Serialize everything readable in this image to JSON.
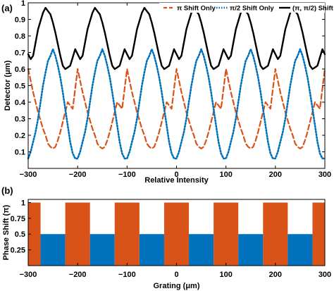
{
  "chart_data": [
    {
      "panel_label": "(a)",
      "type": "line",
      "xlabel": "Relative Intensity",
      "ylabel": "Detector (μm)",
      "xlim": [
        -300,
        300
      ],
      "ylim": [
        0,
        1
      ],
      "x_ticks": [
        -300,
        -200,
        -100,
        0,
        100,
        200,
        300
      ],
      "x_tick_labels": [
        "−300",
        "−200",
        "−100",
        "0",
        "100",
        "200",
        "300"
      ],
      "y_ticks": [
        0.1,
        0.2,
        0.3,
        0.4,
        0.5,
        0.6,
        0.7,
        0.8,
        0.9,
        1
      ],
      "y_tick_labels": [
        "0.1",
        "0.2",
        "0.3",
        "0.4",
        "0.5",
        "0.6",
        "0.7",
        "0.8",
        "0.9",
        "1"
      ],
      "grid": false,
      "legend_position": "top-right",
      "period": 100,
      "series": [
        {
          "name": "π Shift Only",
          "color": "#d95319",
          "style": "dashed",
          "period_offsets": [
            0,
            5,
            10,
            15,
            20,
            25,
            30,
            35,
            40,
            45,
            50,
            55,
            60,
            65,
            70,
            75,
            80,
            85,
            90,
            95
          ],
          "period_values": [
            0.6,
            0.53,
            0.46,
            0.4,
            0.34,
            0.29,
            0.24,
            0.2,
            0.15,
            0.13,
            0.12,
            0.13,
            0.17,
            0.22,
            0.28,
            0.34,
            0.4,
            0.38,
            0.36,
            0.48
          ]
        },
        {
          "name": "π/2 Shift Only",
          "color": "#0072bd",
          "style": "dotted",
          "period_offsets": [
            0,
            5,
            10,
            15,
            20,
            25,
            30,
            35,
            40,
            45,
            50,
            55,
            60,
            65,
            70,
            75,
            80,
            85,
            90,
            95
          ],
          "period_values": [
            0.06,
            0.1,
            0.16,
            0.22,
            0.3,
            0.4,
            0.5,
            0.58,
            0.65,
            0.68,
            0.72,
            0.68,
            0.62,
            0.55,
            0.46,
            0.36,
            0.26,
            0.16,
            0.09,
            0.06
          ]
        },
        {
          "name": "(π, π/2) Shift",
          "color": "#000000",
          "style": "solid",
          "period_offsets": [
            0,
            5,
            10,
            15,
            20,
            25,
            30,
            35,
            40,
            45,
            50,
            55,
            60,
            65,
            70,
            75,
            80,
            85,
            90,
            95
          ],
          "period_values": [
            0.69,
            0.66,
            0.68,
            0.76,
            0.84,
            0.89,
            0.94,
            0.97,
            0.95,
            0.93,
            0.88,
            0.82,
            0.75,
            0.68,
            0.62,
            0.6,
            0.61,
            0.62,
            0.67,
            0.72
          ]
        }
      ]
    },
    {
      "panel_label": "(b)",
      "type": "bar",
      "xlabel": "Grating (μm)",
      "ylabel": "Phase Shift (π)",
      "xlim": [
        -300,
        300
      ],
      "ylim": [
        0,
        1.05
      ],
      "x_ticks": [
        -300,
        -200,
        -100,
        0,
        100,
        200,
        300
      ],
      "x_tick_labels": [
        "−300",
        "−200",
        "−100",
        "0",
        "100",
        "200",
        "300"
      ],
      "y_ticks": [
        0.25,
        0.5,
        0.75,
        1
      ],
      "y_tick_labels": [
        "0.25",
        "0.5",
        "0.75",
        "1"
      ],
      "grid": false,
      "bars": [
        {
          "x0": -300,
          "x1": -275,
          "value": 1,
          "color": "#d95319"
        },
        {
          "x0": -275,
          "x1": -225,
          "value": 0.5,
          "color": "#0072bd"
        },
        {
          "x0": -225,
          "x1": -175,
          "value": 1,
          "color": "#d95319"
        },
        {
          "x0": -175,
          "x1": -125,
          "value": 0.5,
          "color": "#0072bd"
        },
        {
          "x0": -125,
          "x1": -75,
          "value": 1,
          "color": "#d95319"
        },
        {
          "x0": -75,
          "x1": -25,
          "value": 0.5,
          "color": "#0072bd"
        },
        {
          "x0": -25,
          "x1": 25,
          "value": 1,
          "color": "#d95319"
        },
        {
          "x0": 25,
          "x1": 75,
          "value": 0.5,
          "color": "#0072bd"
        },
        {
          "x0": 75,
          "x1": 125,
          "value": 1,
          "color": "#d95319"
        },
        {
          "x0": 125,
          "x1": 175,
          "value": 0.5,
          "color": "#0072bd"
        },
        {
          "x0": 175,
          "x1": 225,
          "value": 1,
          "color": "#d95319"
        },
        {
          "x0": 225,
          "x1": 275,
          "value": 0.5,
          "color": "#0072bd"
        },
        {
          "x0": 275,
          "x1": 300,
          "value": 1,
          "color": "#d95319"
        }
      ]
    }
  ]
}
